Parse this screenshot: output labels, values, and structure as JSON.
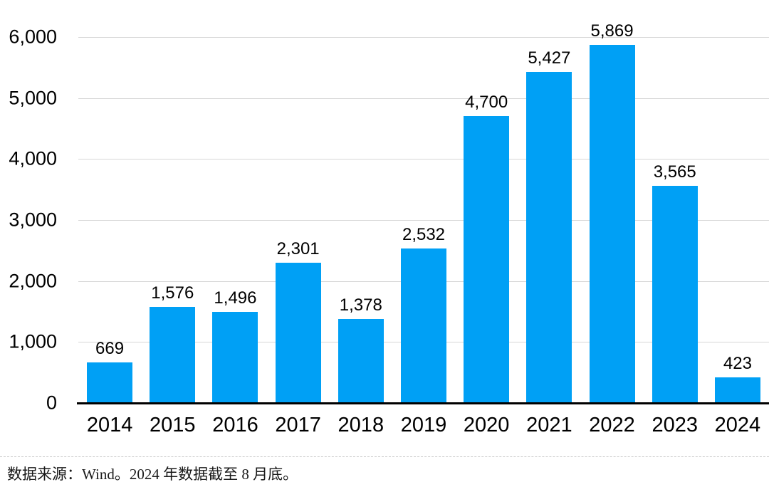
{
  "chart_data": {
    "type": "bar",
    "title": "",
    "xlabel": "",
    "ylabel": "",
    "categories": [
      "2014",
      "2015",
      "2016",
      "2017",
      "2018",
      "2019",
      "2020",
      "2021",
      "2022",
      "2023",
      "2024"
    ],
    "values": [
      669,
      1576,
      1496,
      2301,
      1378,
      2532,
      4700,
      5427,
      5869,
      3565,
      423
    ],
    "value_labels": [
      "669",
      "1,576",
      "1,496",
      "2,301",
      "1,378",
      "2,532",
      "4,700",
      "5,427",
      "5,869",
      "3,565",
      "423"
    ],
    "ylim": [
      0,
      6000
    ],
    "ytick_values": [
      0,
      1000,
      2000,
      3000,
      4000,
      5000,
      6000
    ],
    "ytick_labels": [
      "0",
      "1,000",
      "2,000",
      "3,000",
      "4,000",
      "5,000",
      "6,000"
    ],
    "grid": "horizontal",
    "legend_position": "none",
    "bar_color": "#00a0f5"
  },
  "colors": {
    "bar": "#00a0f5",
    "gridline": "#d6d6d6",
    "axis": "#000000",
    "text": "#000000",
    "separator": "#c8c8c8"
  },
  "footer": {
    "source_note": "数据来源：Wind。2024 年数据截至 8 月底。"
  }
}
